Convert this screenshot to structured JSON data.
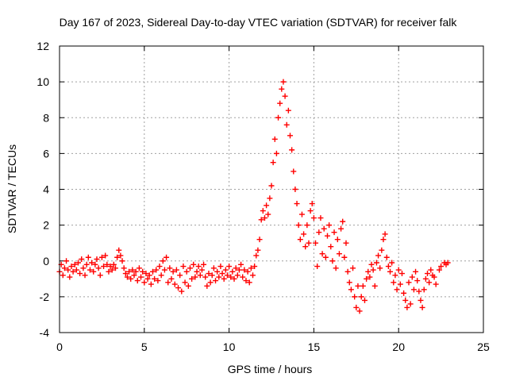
{
  "chart_data": {
    "type": "scatter",
    "title": "Day 167 of 2023, Sidereal Day-to-day VTEC variation (SDTVAR) for receiver falk",
    "xlabel": "GPS time / hours",
    "ylabel": "SDTVAR / TECUs",
    "xlim": [
      0,
      25
    ],
    "ylim": [
      -4,
      12
    ],
    "xticks": [
      0,
      5,
      10,
      15,
      20,
      25
    ],
    "yticks": [
      -4,
      -2,
      0,
      2,
      4,
      6,
      8,
      10,
      12
    ],
    "grid": true,
    "marker": "+",
    "marker_color": "#ff0000",
    "series": [
      {
        "name": "SDTVAR",
        "points": [
          [
            0.0,
            -0.6
          ],
          [
            0.1,
            -0.2
          ],
          [
            0.2,
            -0.8
          ],
          [
            0.3,
            -0.4
          ],
          [
            0.4,
            0.0
          ],
          [
            0.5,
            -0.5
          ],
          [
            0.6,
            -0.9
          ],
          [
            0.7,
            -0.3
          ],
          [
            0.8,
            -0.6
          ],
          [
            0.9,
            -0.2
          ],
          [
            1.0,
            -0.5
          ],
          [
            1.1,
            -0.1
          ],
          [
            1.2,
            -0.7
          ],
          [
            1.3,
            0.1
          ],
          [
            1.4,
            -0.4
          ],
          [
            1.5,
            -0.8
          ],
          [
            1.6,
            -0.2
          ],
          [
            1.7,
            0.2
          ],
          [
            1.8,
            -0.5
          ],
          [
            1.9,
            -0.1
          ],
          [
            2.0,
            -0.6
          ],
          [
            2.1,
            -0.2
          ],
          [
            2.2,
            0.1
          ],
          [
            2.3,
            -0.4
          ],
          [
            2.4,
            -0.8
          ],
          [
            2.5,
            0.2
          ],
          [
            2.6,
            -0.3
          ],
          [
            2.7,
            0.3
          ],
          [
            2.8,
            -0.2
          ],
          [
            2.9,
            -0.6
          ],
          [
            3.0,
            -0.3
          ],
          [
            3.1,
            -0.5
          ],
          [
            3.2,
            -0.2
          ],
          [
            3.3,
            -0.4
          ],
          [
            3.4,
            0.2
          ],
          [
            3.5,
            0.6
          ],
          [
            3.6,
            0.3
          ],
          [
            3.7,
            0.0
          ],
          [
            3.8,
            -0.4
          ],
          [
            3.9,
            -0.7
          ],
          [
            4.0,
            -0.9
          ],
          [
            4.1,
            -0.6
          ],
          [
            4.2,
            -1.0
          ],
          [
            4.3,
            -0.5
          ],
          [
            4.4,
            -0.8
          ],
          [
            4.5,
            -0.6
          ],
          [
            4.6,
            -1.1
          ],
          [
            4.7,
            -0.4
          ],
          [
            4.8,
            -0.9
          ],
          [
            4.9,
            -0.6
          ],
          [
            5.0,
            -1.2
          ],
          [
            5.1,
            -0.7
          ],
          [
            5.2,
            -1.0
          ],
          [
            5.3,
            -0.8
          ],
          [
            5.4,
            -1.3
          ],
          [
            5.5,
            -0.6
          ],
          [
            5.6,
            -1.0
          ],
          [
            5.7,
            -0.5
          ],
          [
            5.8,
            -1.1
          ],
          [
            5.9,
            -0.3
          ],
          [
            6.0,
            -0.8
          ],
          [
            6.1,
            0.0
          ],
          [
            6.2,
            -0.5
          ],
          [
            6.3,
            0.2
          ],
          [
            6.4,
            -1.2
          ],
          [
            6.5,
            -0.4
          ],
          [
            6.6,
            -1.0
          ],
          [
            6.7,
            -0.6
          ],
          [
            6.8,
            -1.3
          ],
          [
            6.9,
            -0.5
          ],
          [
            7.0,
            -1.5
          ],
          [
            7.1,
            -0.8
          ],
          [
            7.2,
            -1.7
          ],
          [
            7.3,
            -0.3
          ],
          [
            7.4,
            -1.2
          ],
          [
            7.5,
            -0.6
          ],
          [
            7.6,
            -1.4
          ],
          [
            7.7,
            -0.4
          ],
          [
            7.8,
            -1.0
          ],
          [
            7.9,
            -0.2
          ],
          [
            8.0,
            -0.9
          ],
          [
            8.1,
            -0.6
          ],
          [
            8.2,
            -0.3
          ],
          [
            8.3,
            -0.8
          ],
          [
            8.4,
            -0.5
          ],
          [
            8.5,
            -0.2
          ],
          [
            8.6,
            -0.9
          ],
          [
            8.7,
            -1.4
          ],
          [
            8.8,
            -0.7
          ],
          [
            8.9,
            -1.2
          ],
          [
            9.0,
            -0.8
          ],
          [
            9.1,
            -0.4
          ],
          [
            9.2,
            -1.1
          ],
          [
            9.3,
            -0.6
          ],
          [
            9.4,
            -0.9
          ],
          [
            9.5,
            -0.3
          ],
          [
            9.6,
            -0.7
          ],
          [
            9.7,
            -1.0
          ],
          [
            9.8,
            -0.5
          ],
          [
            9.9,
            -0.8
          ],
          [
            10.0,
            -0.3
          ],
          [
            10.1,
            -0.9
          ],
          [
            10.2,
            -0.6
          ],
          [
            10.3,
            -1.0
          ],
          [
            10.4,
            -0.4
          ],
          [
            10.5,
            -0.8
          ],
          [
            10.6,
            -0.5
          ],
          [
            10.7,
            -0.2
          ],
          [
            10.8,
            -0.9
          ],
          [
            10.9,
            -0.5
          ],
          [
            11.0,
            -1.1
          ],
          [
            11.1,
            -0.6
          ],
          [
            11.2,
            -1.2
          ],
          [
            11.3,
            -0.4
          ],
          [
            11.4,
            -0.8
          ],
          [
            11.5,
            -0.3
          ],
          [
            11.6,
            0.3
          ],
          [
            11.7,
            0.6
          ],
          [
            11.8,
            1.2
          ],
          [
            11.9,
            2.3
          ],
          [
            12.0,
            2.8
          ],
          [
            12.1,
            2.4
          ],
          [
            12.2,
            3.1
          ],
          [
            12.3,
            2.6
          ],
          [
            12.4,
            3.5
          ],
          [
            12.5,
            4.2
          ],
          [
            12.6,
            5.5
          ],
          [
            12.7,
            6.8
          ],
          [
            12.8,
            6.0
          ],
          [
            12.9,
            8.0
          ],
          [
            13.0,
            8.8
          ],
          [
            13.1,
            9.6
          ],
          [
            13.2,
            10.0
          ],
          [
            13.3,
            9.2
          ],
          [
            13.4,
            7.6
          ],
          [
            13.5,
            8.4
          ],
          [
            13.6,
            7.0
          ],
          [
            13.7,
            6.2
          ],
          [
            13.8,
            5.0
          ],
          [
            13.9,
            4.0
          ],
          [
            14.0,
            3.2
          ],
          [
            14.1,
            2.0
          ],
          [
            14.2,
            1.2
          ],
          [
            14.3,
            2.6
          ],
          [
            14.4,
            1.5
          ],
          [
            14.5,
            0.8
          ],
          [
            14.6,
            2.0
          ],
          [
            14.7,
            1.0
          ],
          [
            14.8,
            2.8
          ],
          [
            14.9,
            3.2
          ],
          [
            15.0,
            2.4
          ],
          [
            15.1,
            1.0
          ],
          [
            15.2,
            -0.3
          ],
          [
            15.3,
            1.6
          ],
          [
            15.4,
            2.4
          ],
          [
            15.5,
            0.4
          ],
          [
            15.6,
            1.8
          ],
          [
            15.7,
            0.2
          ],
          [
            15.8,
            1.4
          ],
          [
            15.9,
            2.0
          ],
          [
            16.0,
            0.8
          ],
          [
            16.1,
            0.0
          ],
          [
            16.2,
            1.6
          ],
          [
            16.3,
            -0.4
          ],
          [
            16.4,
            1.2
          ],
          [
            16.5,
            0.4
          ],
          [
            16.6,
            1.8
          ],
          [
            16.7,
            2.2
          ],
          [
            16.8,
            0.2
          ],
          [
            16.9,
            1.0
          ],
          [
            17.0,
            -0.6
          ],
          [
            17.1,
            -1.2
          ],
          [
            17.2,
            -1.6
          ],
          [
            17.3,
            -0.4
          ],
          [
            17.4,
            -2.0
          ],
          [
            17.5,
            -2.6
          ],
          [
            17.6,
            -1.4
          ],
          [
            17.7,
            -2.8
          ],
          [
            17.8,
            -2.0
          ],
          [
            17.9,
            -1.4
          ],
          [
            18.0,
            -2.2
          ],
          [
            18.1,
            -1.0
          ],
          [
            18.2,
            -0.6
          ],
          [
            18.3,
            -0.9
          ],
          [
            18.4,
            -0.2
          ],
          [
            18.5,
            -0.5
          ],
          [
            18.6,
            -1.4
          ],
          [
            18.7,
            -0.1
          ],
          [
            18.8,
            0.3
          ],
          [
            18.9,
            -0.4
          ],
          [
            19.0,
            0.6
          ],
          [
            19.1,
            1.2
          ],
          [
            19.2,
            1.5
          ],
          [
            19.3,
            0.2
          ],
          [
            19.4,
            -0.3
          ],
          [
            19.5,
            -0.6
          ],
          [
            19.6,
            -0.1
          ],
          [
            19.7,
            -1.2
          ],
          [
            19.8,
            -0.8
          ],
          [
            19.9,
            -1.6
          ],
          [
            20.0,
            -0.5
          ],
          [
            20.1,
            -1.3
          ],
          [
            20.2,
            -0.7
          ],
          [
            20.3,
            -1.8
          ],
          [
            20.4,
            -2.2
          ],
          [
            20.5,
            -2.6
          ],
          [
            20.6,
            -1.2
          ],
          [
            20.7,
            -2.4
          ],
          [
            20.8,
            -0.9
          ],
          [
            20.9,
            -1.6
          ],
          [
            21.0,
            -0.6
          ],
          [
            21.1,
            -1.1
          ],
          [
            21.2,
            -1.7
          ],
          [
            21.3,
            -2.2
          ],
          [
            21.4,
            -2.6
          ],
          [
            21.5,
            -1.6
          ],
          [
            21.6,
            -1.0
          ],
          [
            21.7,
            -0.7
          ],
          [
            21.8,
            -1.2
          ],
          [
            21.9,
            -0.5
          ],
          [
            22.0,
            -0.8
          ],
          [
            22.1,
            -0.9
          ],
          [
            22.2,
            -1.3
          ],
          [
            22.4,
            -0.5
          ],
          [
            22.5,
            -0.3
          ],
          [
            22.7,
            -0.1
          ],
          [
            22.8,
            -0.2
          ],
          [
            22.9,
            -0.1
          ]
        ]
      }
    ]
  }
}
